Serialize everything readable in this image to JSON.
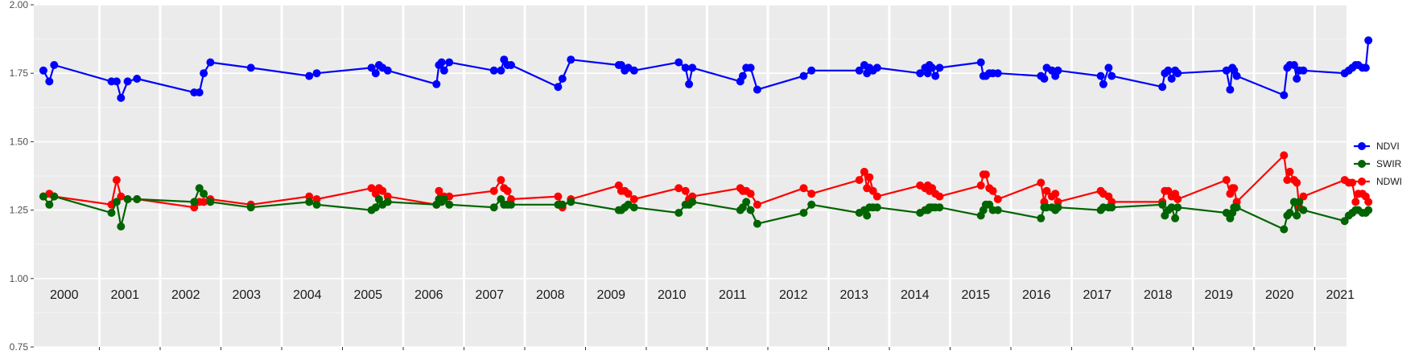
{
  "chart_data": {
    "type": "line",
    "title": "",
    "xlabel": "",
    "ylabel": "",
    "ylim": [
      0.75,
      2.0
    ],
    "xlim": [
      "2000-01-01",
      "2021-12-31"
    ],
    "y_ticks": [
      "0.75",
      "1.00",
      "1.25",
      "1.50",
      "1.75",
      "2.00"
    ],
    "y_tick_values": [
      0.75,
      1.0,
      1.25,
      1.5,
      1.75,
      2.0
    ],
    "years": [
      "2000",
      "2001",
      "2002",
      "2003",
      "2004",
      "2005",
      "2006",
      "2007",
      "2008",
      "2009",
      "2010",
      "2011",
      "2012",
      "2013",
      "2014",
      "2015",
      "2016",
      "2017",
      "2018",
      "2019",
      "2020",
      "2021"
    ],
    "grid": true,
    "background": "#ebebeb",
    "legend_position": "right",
    "series": [
      {
        "name": "NDVI",
        "color": "#0000ff",
        "x": [
          "2000-01-20",
          "2000-02-25",
          "2000-03-25",
          "2001-03-05",
          "2001-04-05",
          "2001-05-01",
          "2001-06-10",
          "2001-08-05",
          "2002-07-15",
          "2002-08-15",
          "2002-09-10",
          "2002-10-20",
          "2003-06-20",
          "2004-06-05",
          "2004-07-20",
          "2005-06-15",
          "2005-07-10",
          "2005-07-30",
          "2005-08-20",
          "2005-09-20",
          "2006-07-10",
          "2006-07-25",
          "2006-08-10",
          "2006-08-25",
          "2006-09-25",
          "2007-06-20",
          "2007-08-01",
          "2007-08-20",
          "2007-09-10",
          "2007-10-01",
          "2008-07-10",
          "2008-08-05",
          "2008-09-25",
          "2009-07-10",
          "2009-07-25",
          "2009-08-15",
          "2009-09-05",
          "2009-10-10",
          "2010-07-05",
          "2010-08-15",
          "2010-09-05",
          "2010-09-25",
          "2011-07-10",
          "2011-07-25",
          "2011-08-15",
          "2011-09-10",
          "2011-10-20",
          "2012-07-25",
          "2012-09-10",
          "2013-06-25",
          "2013-07-25",
          "2013-08-10",
          "2013-08-25",
          "2013-09-15",
          "2013-10-10",
          "2014-06-25",
          "2014-07-25",
          "2014-08-10",
          "2014-08-20",
          "2014-09-05",
          "2014-09-25",
          "2014-10-20",
          "2015-06-25",
          "2015-07-10",
          "2015-07-25",
          "2015-08-15",
          "2015-09-05",
          "2015-10-05",
          "2016-06-20",
          "2016-07-10",
          "2016-07-25",
          "2016-08-25",
          "2016-09-15",
          "2016-10-01",
          "2017-06-15",
          "2017-07-01",
          "2017-08-01",
          "2017-08-20",
          "2018-06-20",
          "2018-07-05",
          "2018-07-25",
          "2018-08-15",
          "2018-09-05",
          "2018-09-20",
          "2019-07-10",
          "2019-08-01",
          "2019-08-15",
          "2019-08-25",
          "2019-09-10",
          "2020-06-20",
          "2020-07-10",
          "2020-07-25",
          "2020-08-20",
          "2020-09-05",
          "2020-09-20",
          "2020-10-15",
          "2021-06-20",
          "2021-07-15",
          "2021-08-05",
          "2021-08-25",
          "2021-09-10",
          "2021-10-05",
          "2021-10-25",
          "2021-11-10"
        ],
        "values": [
          1.76,
          1.72,
          1.78,
          1.72,
          1.72,
          1.66,
          1.72,
          1.73,
          1.68,
          1.68,
          1.75,
          1.79,
          1.77,
          1.74,
          1.75,
          1.77,
          1.75,
          1.78,
          1.77,
          1.76,
          1.71,
          1.78,
          1.79,
          1.76,
          1.79,
          1.76,
          1.76,
          1.8,
          1.78,
          1.78,
          1.7,
          1.73,
          1.8,
          1.78,
          1.78,
          1.76,
          1.77,
          1.76,
          1.79,
          1.77,
          1.71,
          1.77,
          1.72,
          1.74,
          1.77,
          1.77,
          1.69,
          1.74,
          1.76,
          1.76,
          1.78,
          1.75,
          1.77,
          1.76,
          1.77,
          1.75,
          1.77,
          1.75,
          1.78,
          1.77,
          1.74,
          1.77,
          1.79,
          1.74,
          1.74,
          1.75,
          1.75,
          1.75,
          1.74,
          1.73,
          1.77,
          1.76,
          1.74,
          1.76,
          1.74,
          1.71,
          1.77,
          1.74,
          1.7,
          1.75,
          1.76,
          1.73,
          1.76,
          1.75,
          1.76,
          1.69,
          1.77,
          1.76,
          1.74,
          1.67,
          1.77,
          1.78,
          1.78,
          1.73,
          1.76,
          1.76,
          1.75,
          1.76,
          1.77,
          1.78,
          1.78,
          1.77,
          1.77,
          1.87
        ]
      },
      {
        "name": "SWIR",
        "color": "#006400",
        "x": [
          "2000-01-20",
          "2000-02-25",
          "2000-03-25",
          "2001-03-05",
          "2001-04-05",
          "2001-05-01",
          "2001-06-10",
          "2001-08-05",
          "2002-07-15",
          "2002-08-15",
          "2002-09-10",
          "2002-10-20",
          "2003-06-20",
          "2004-06-05",
          "2004-07-20",
          "2005-06-15",
          "2005-07-10",
          "2005-07-30",
          "2005-08-20",
          "2005-09-20",
          "2006-07-10",
          "2006-07-25",
          "2006-08-10",
          "2006-08-25",
          "2006-09-25",
          "2007-06-20",
          "2007-08-01",
          "2007-08-20",
          "2007-09-10",
          "2007-10-01",
          "2008-07-10",
          "2008-08-05",
          "2008-09-25",
          "2009-07-10",
          "2009-07-25",
          "2009-08-15",
          "2009-09-05",
          "2009-10-10",
          "2010-07-05",
          "2010-08-15",
          "2010-09-05",
          "2010-09-25",
          "2011-07-10",
          "2011-07-25",
          "2011-08-15",
          "2011-09-10",
          "2011-10-20",
          "2012-07-25",
          "2012-09-10",
          "2013-06-25",
          "2013-07-25",
          "2013-08-10",
          "2013-08-25",
          "2013-09-15",
          "2013-10-10",
          "2014-06-25",
          "2014-07-25",
          "2014-08-10",
          "2014-08-20",
          "2014-09-05",
          "2014-09-25",
          "2014-10-20",
          "2015-06-25",
          "2015-07-10",
          "2015-07-25",
          "2015-08-15",
          "2015-09-05",
          "2015-10-05",
          "2016-06-20",
          "2016-07-10",
          "2016-07-25",
          "2016-08-25",
          "2016-09-15",
          "2016-10-01",
          "2017-06-15",
          "2017-07-01",
          "2017-08-01",
          "2017-08-20",
          "2018-06-20",
          "2018-07-05",
          "2018-07-25",
          "2018-08-15",
          "2018-09-05",
          "2018-09-20",
          "2019-07-10",
          "2019-08-01",
          "2019-08-15",
          "2019-08-25",
          "2019-09-10",
          "2020-06-20",
          "2020-07-10",
          "2020-07-25",
          "2020-08-20",
          "2020-09-05",
          "2020-09-20",
          "2020-10-15",
          "2021-06-20",
          "2021-07-15",
          "2021-08-05",
          "2021-08-25",
          "2021-09-10",
          "2021-10-05",
          "2021-10-25",
          "2021-11-10"
        ],
        "values": [
          1.3,
          1.27,
          1.3,
          1.24,
          1.28,
          1.19,
          1.29,
          1.29,
          1.28,
          1.33,
          1.31,
          1.28,
          1.26,
          1.28,
          1.27,
          1.25,
          1.26,
          1.29,
          1.27,
          1.28,
          1.27,
          1.29,
          1.28,
          1.29,
          1.27,
          1.26,
          1.29,
          1.27,
          1.27,
          1.27,
          1.27,
          1.27,
          1.28,
          1.25,
          1.25,
          1.26,
          1.27,
          1.26,
          1.24,
          1.27,
          1.27,
          1.28,
          1.25,
          1.26,
          1.28,
          1.25,
          1.2,
          1.24,
          1.27,
          1.24,
          1.25,
          1.23,
          1.26,
          1.26,
          1.26,
          1.24,
          1.25,
          1.25,
          1.26,
          1.26,
          1.26,
          1.26,
          1.23,
          1.25,
          1.27,
          1.27,
          1.25,
          1.25,
          1.22,
          1.26,
          1.26,
          1.26,
          1.25,
          1.26,
          1.25,
          1.26,
          1.26,
          1.26,
          1.27,
          1.23,
          1.25,
          1.26,
          1.22,
          1.26,
          1.24,
          1.22,
          1.24,
          1.26,
          1.26,
          1.18,
          1.23,
          1.24,
          1.28,
          1.23,
          1.28,
          1.25,
          1.21,
          1.23,
          1.24,
          1.25,
          1.25,
          1.24,
          1.24,
          1.25
        ]
      },
      {
        "name": "NDWI",
        "color": "#ff0000",
        "x": [
          "2000-01-20",
          "2000-02-25",
          "2000-03-25",
          "2001-03-05",
          "2001-04-05",
          "2001-05-01",
          "2001-06-10",
          "2001-08-05",
          "2002-07-15",
          "2002-08-15",
          "2002-09-10",
          "2002-10-20",
          "2003-06-20",
          "2004-06-05",
          "2004-07-20",
          "2005-06-15",
          "2005-07-10",
          "2005-07-30",
          "2005-08-20",
          "2005-09-20",
          "2006-07-10",
          "2006-07-25",
          "2006-08-10",
          "2006-08-25",
          "2006-09-25",
          "2007-06-20",
          "2007-08-01",
          "2007-08-20",
          "2007-09-10",
          "2007-10-01",
          "2008-07-10",
          "2008-08-05",
          "2008-09-25",
          "2009-07-10",
          "2009-07-25",
          "2009-08-15",
          "2009-09-05",
          "2009-10-10",
          "2010-07-05",
          "2010-08-15",
          "2010-09-05",
          "2010-09-25",
          "2011-07-10",
          "2011-07-25",
          "2011-08-15",
          "2011-09-10",
          "2011-10-20",
          "2012-07-25",
          "2012-09-10",
          "2013-06-25",
          "2013-07-25",
          "2013-08-10",
          "2013-08-25",
          "2013-09-15",
          "2013-10-10",
          "2014-06-25",
          "2014-07-25",
          "2014-08-10",
          "2014-08-20",
          "2014-09-05",
          "2014-09-25",
          "2014-10-20",
          "2015-06-25",
          "2015-07-10",
          "2015-07-25",
          "2015-08-15",
          "2015-09-05",
          "2015-10-05",
          "2016-06-20",
          "2016-07-10",
          "2016-07-25",
          "2016-08-25",
          "2016-09-15",
          "2016-10-01",
          "2017-06-15",
          "2017-07-01",
          "2017-08-01",
          "2017-08-20",
          "2018-06-20",
          "2018-07-05",
          "2018-07-25",
          "2018-08-15",
          "2018-09-05",
          "2018-09-20",
          "2019-07-10",
          "2019-08-01",
          "2019-08-15",
          "2019-08-25",
          "2019-09-10",
          "2020-06-20",
          "2020-07-10",
          "2020-07-25",
          "2020-08-20",
          "2020-09-05",
          "2020-09-20",
          "2020-10-15",
          "2021-06-20",
          "2021-07-15",
          "2021-08-05",
          "2021-08-25",
          "2021-09-10",
          "2021-10-05",
          "2021-10-25",
          "2021-11-10"
        ],
        "values": [
          1.3,
          1.31,
          1.3,
          1.27,
          1.36,
          1.3,
          1.29,
          1.29,
          1.26,
          1.28,
          1.28,
          1.29,
          1.27,
          1.3,
          1.29,
          1.33,
          1.31,
          1.33,
          1.32,
          1.3,
          1.27,
          1.32,
          1.29,
          1.3,
          1.3,
          1.32,
          1.36,
          1.33,
          1.32,
          1.29,
          1.3,
          1.26,
          1.29,
          1.34,
          1.32,
          1.32,
          1.31,
          1.29,
          1.33,
          1.32,
          1.29,
          1.3,
          1.33,
          1.32,
          1.32,
          1.31,
          1.27,
          1.33,
          1.31,
          1.36,
          1.39,
          1.33,
          1.37,
          1.32,
          1.3,
          1.34,
          1.33,
          1.34,
          1.32,
          1.33,
          1.31,
          1.3,
          1.34,
          1.38,
          1.38,
          1.33,
          1.32,
          1.29,
          1.35,
          1.28,
          1.32,
          1.3,
          1.31,
          1.28,
          1.32,
          1.31,
          1.3,
          1.28,
          1.28,
          1.32,
          1.32,
          1.3,
          1.31,
          1.29,
          1.36,
          1.31,
          1.33,
          1.33,
          1.28,
          1.45,
          1.36,
          1.39,
          1.36,
          1.35,
          1.26,
          1.3,
          1.36,
          1.35,
          1.35,
          1.28,
          1.31,
          1.31,
          1.3,
          1.28
        ]
      }
    ]
  }
}
